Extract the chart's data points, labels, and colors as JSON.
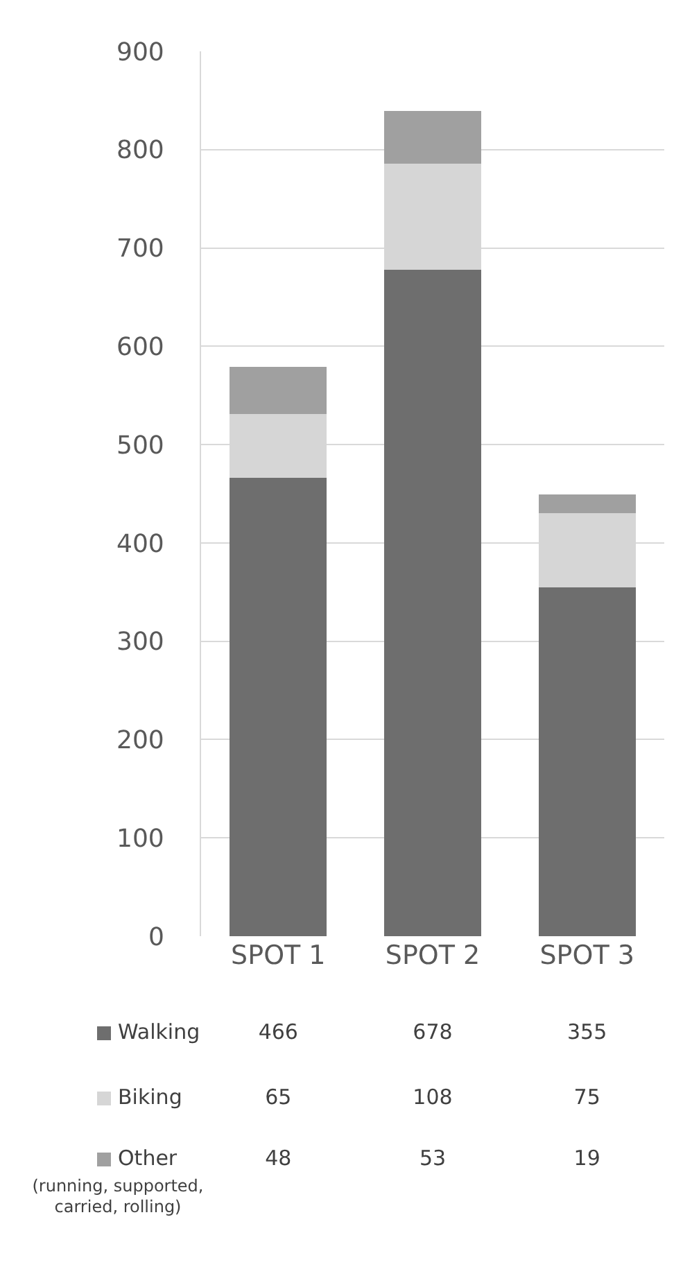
{
  "chart_data": {
    "type": "bar",
    "stacked": true,
    "categories": [
      "SPOT 1",
      "SPOT 2",
      "SPOT 3"
    ],
    "series": [
      {
        "name": "Walking",
        "color": "#6e6e6e",
        "values": [
          466,
          678,
          355
        ]
      },
      {
        "name": "Biking",
        "color": "#d6d6d6",
        "values": [
          65,
          108,
          75
        ]
      },
      {
        "name": "Other",
        "color": "#a0a0a0",
        "values": [
          48,
          53,
          19
        ]
      }
    ],
    "ylim": [
      0,
      900
    ],
    "yticks": [
      0,
      100,
      200,
      300,
      400,
      500,
      600,
      700,
      800,
      900
    ],
    "grid": "y",
    "data_labels": true,
    "legend": "bottom",
    "annotations": [
      "(running, supported, carried, rolling)"
    ]
  }
}
